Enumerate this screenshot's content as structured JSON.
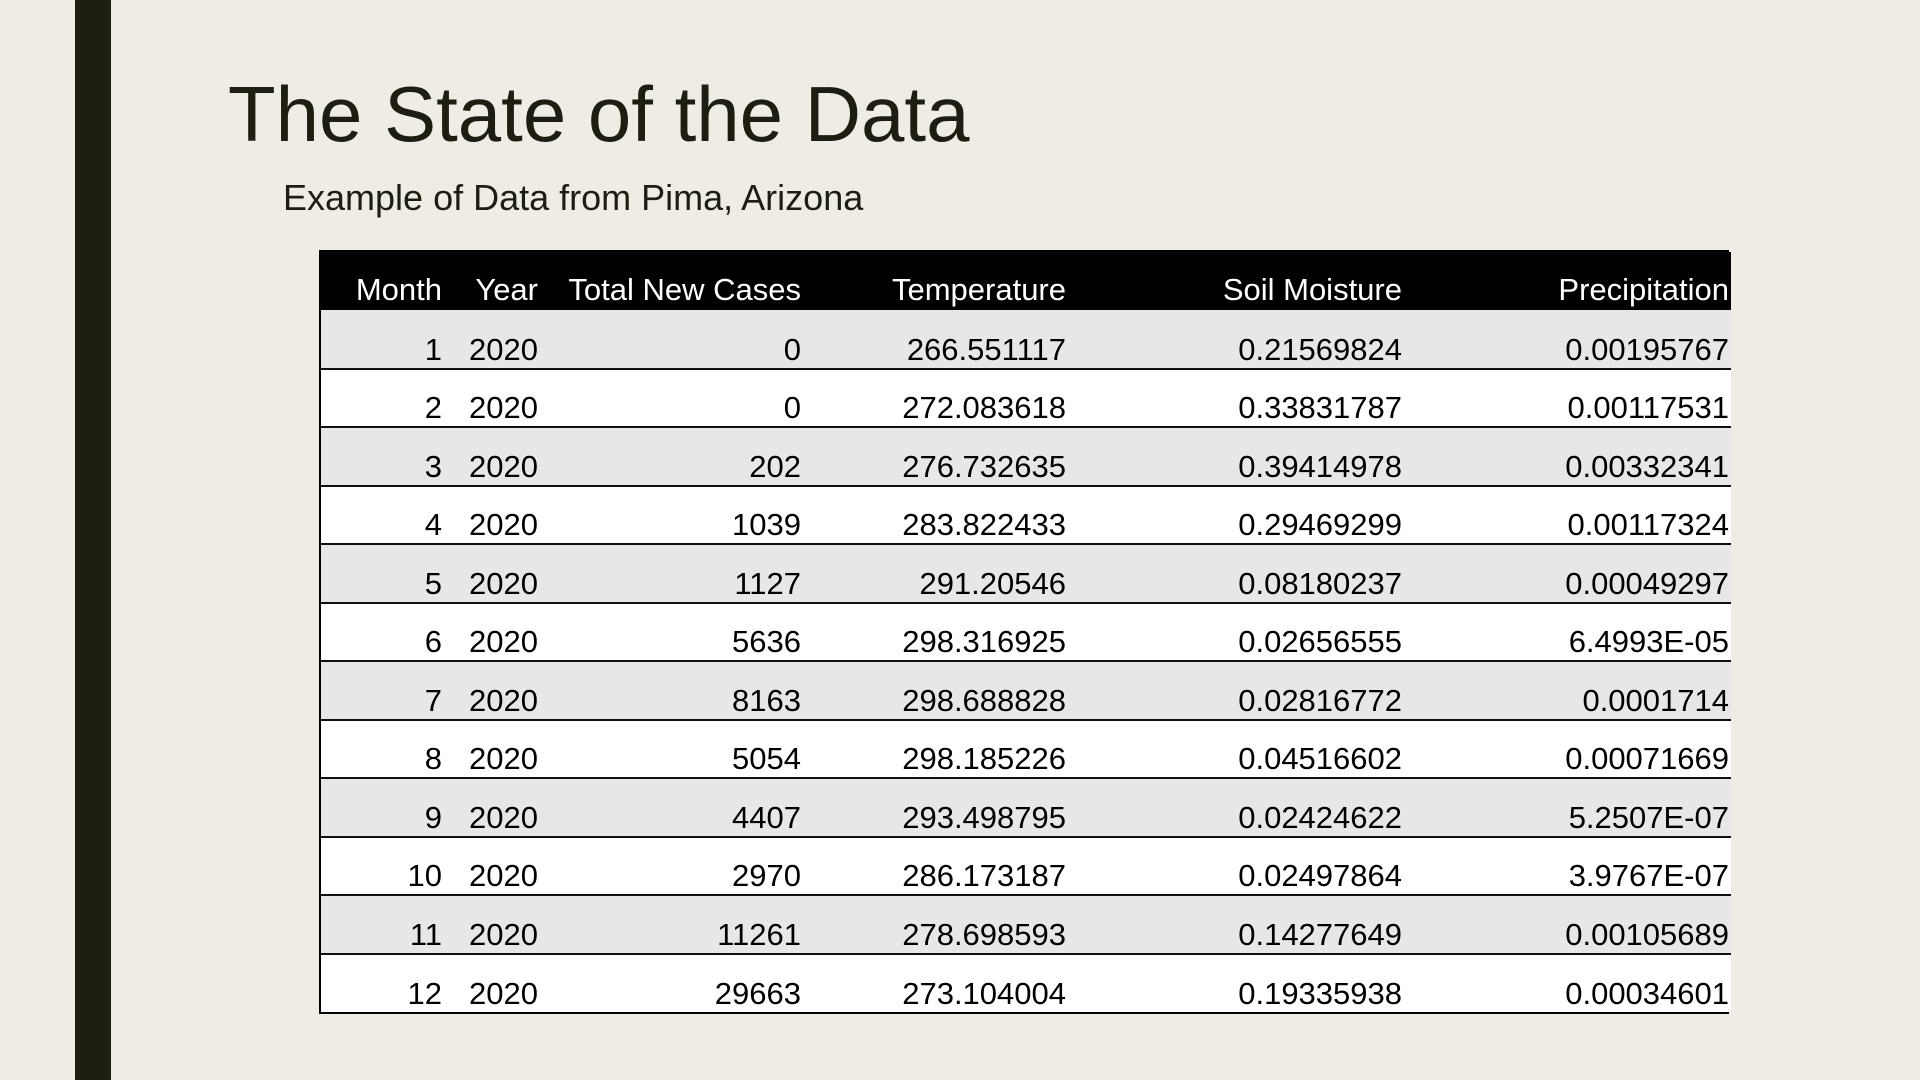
{
  "slide": {
    "title": "The State of the Data",
    "subtitle": "Example of Data from Pima, Arizona"
  },
  "colors": {
    "background": "#EEECE4",
    "accent_bar": "#1E1E12",
    "header_bg": "#000000",
    "header_text": "#FFFFFF",
    "row_odd": "#E7E7E7",
    "row_even": "#FFFFFF"
  },
  "table": {
    "headers": [
      "Month",
      "Year",
      "Total New Cases",
      "Temperature",
      "Soil Moisture",
      "Precipitation"
    ],
    "rows": [
      [
        "1",
        "2020",
        "0",
        "266.551117",
        "0.21569824",
        "0.00195767"
      ],
      [
        "2",
        "2020",
        "0",
        "272.083618",
        "0.33831787",
        "0.00117531"
      ],
      [
        "3",
        "2020",
        "202",
        "276.732635",
        "0.39414978",
        "0.00332341"
      ],
      [
        "4",
        "2020",
        "1039",
        "283.822433",
        "0.29469299",
        "0.00117324"
      ],
      [
        "5",
        "2020",
        "1127",
        "291.20546",
        "0.08180237",
        "0.00049297"
      ],
      [
        "6",
        "2020",
        "5636",
        "298.316925",
        "0.02656555",
        "6.4993E-05"
      ],
      [
        "7",
        "2020",
        "8163",
        "298.688828",
        "0.02816772",
        "0.0001714"
      ],
      [
        "8",
        "2020",
        "5054",
        "298.185226",
        "0.04516602",
        "0.00071669"
      ],
      [
        "9",
        "2020",
        "4407",
        "293.498795",
        "0.02424622",
        "5.2507E-07"
      ],
      [
        "10",
        "2020",
        "2970",
        "286.173187",
        "0.02497864",
        "3.9767E-07"
      ],
      [
        "11",
        "2020",
        "11261",
        "278.698593",
        "0.14277649",
        "0.00105689"
      ],
      [
        "12",
        "2020",
        "29663",
        "273.104004",
        "0.19335938",
        "0.00034601"
      ]
    ]
  }
}
